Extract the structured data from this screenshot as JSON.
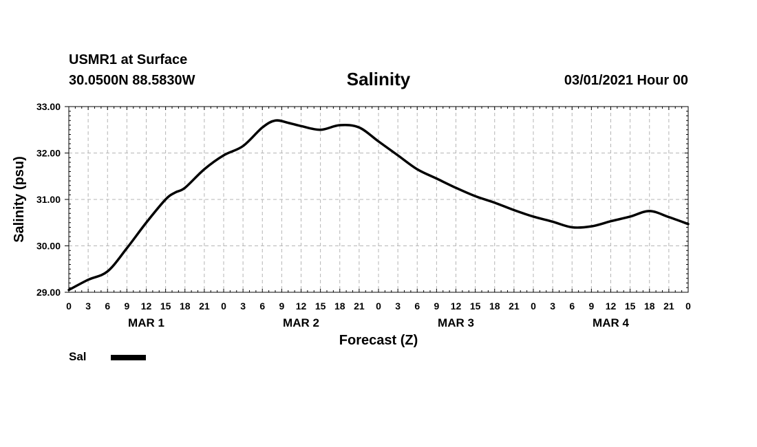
{
  "header": {
    "station": "USMR1 at Surface",
    "coords": "30.0500N 88.5830W",
    "title": "Salinity",
    "datetime": "03/01/2021 Hour 00"
  },
  "legend": {
    "label": "Sal",
    "color": "#000000"
  },
  "chart_data": {
    "type": "line",
    "title": "Salinity",
    "xlabel": "Forecast (Z)",
    "ylabel": "Salinity (psu)",
    "ylim": [
      29.0,
      33.0
    ],
    "xlim_hours": [
      0,
      96
    ],
    "grid": true,
    "legend_position": "bottom-left",
    "y_ticks": [
      "29.00",
      "30.00",
      "31.00",
      "32.00",
      "33.00"
    ],
    "x_tick_labels": [
      "0",
      "3",
      "6",
      "9",
      "12",
      "15",
      "18",
      "21",
      "0",
      "3",
      "6",
      "9",
      "12",
      "15",
      "18",
      "21",
      "0",
      "3",
      "6",
      "9",
      "12",
      "15",
      "18",
      "21",
      "0",
      "3",
      "6",
      "9",
      "12",
      "15",
      "18",
      "21",
      "0"
    ],
    "day_labels": [
      "MAR 1",
      "MAR 2",
      "MAR 3",
      "MAR 4"
    ],
    "series": [
      {
        "name": "Sal",
        "color": "#000000",
        "x": [
          0,
          3,
          6,
          9,
          12,
          15,
          16.5,
          18,
          21,
          24,
          27,
          30,
          32,
          34,
          36,
          39,
          42,
          45,
          48,
          51,
          54,
          57,
          60,
          63,
          66,
          69,
          72,
          75,
          78,
          81,
          84,
          87,
          90,
          93,
          96
        ],
        "y": [
          29.05,
          29.27,
          29.45,
          29.95,
          30.5,
          31.0,
          31.15,
          31.25,
          31.65,
          31.95,
          32.15,
          32.55,
          32.7,
          32.65,
          32.58,
          32.5,
          32.6,
          32.55,
          32.25,
          31.95,
          31.65,
          31.45,
          31.25,
          31.07,
          30.93,
          30.77,
          30.63,
          30.52,
          30.4,
          30.42,
          30.53,
          30.63,
          30.75,
          30.62,
          30.47
        ]
      }
    ]
  }
}
